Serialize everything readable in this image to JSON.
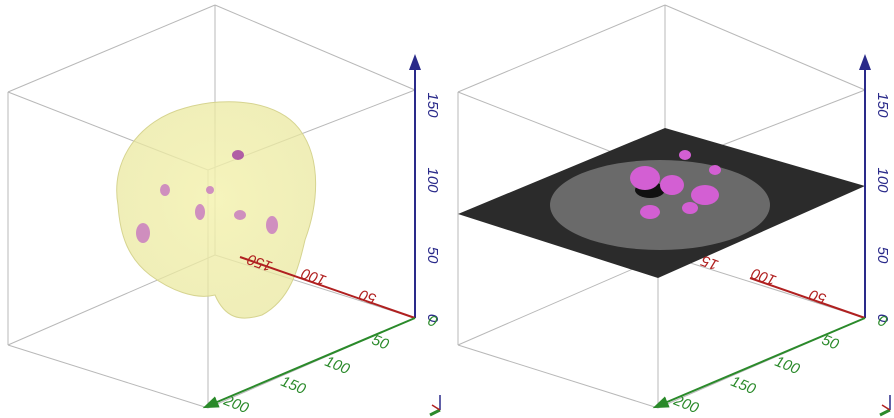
{
  "panels": [
    {
      "z_ticks": [
        0,
        50,
        100,
        150
      ],
      "x_ticks": [
        50,
        100,
        150
      ],
      "y_ticks": [
        0,
        50,
        100,
        150,
        200
      ]
    },
    {
      "z_ticks": [
        0,
        50,
        100,
        150
      ],
      "x_ticks": [
        50,
        100,
        "15"
      ],
      "y_ticks": [
        0,
        50,
        100,
        150,
        200
      ]
    }
  ]
}
